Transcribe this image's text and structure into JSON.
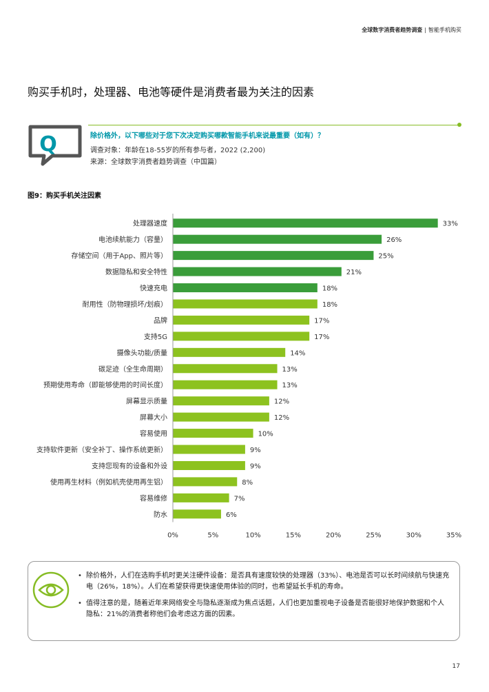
{
  "header": {
    "report": "全球数字消费者趋势调查",
    "separator": "|",
    "section": "智能手机购买"
  },
  "page_title": "购买手机时，处理器、电池等硬件是消费者最为关注的因素",
  "question": {
    "icon_letter": "Q",
    "text": "除价格外，以下哪些对于您下次决定购买哪款智能手机来说最重要（如有）？",
    "respondents": "调查对象：年龄在18-55岁的所有参与者，2022 (2,200)",
    "source": "来源：全球数字消费者趋势调查（中国篇）",
    "accent_color": "#86bc25",
    "text_color": "#0097a9"
  },
  "figure_title": "图9：购买手机关注因素",
  "chart_data": {
    "type": "bar",
    "orientation": "horizontal",
    "categories": [
      "处理器速度",
      "电池续航能力（容量）",
      "存储空间（用于App、照片等）",
      "数据隐私和安全特性",
      "快速充电",
      "耐用性（防物理损坏/划痕）",
      "品牌",
      "支持5G",
      "摄像头功能/质量",
      "碳足迹（全生命周期）",
      "预期使用寿命（即能够使用的时间长度）",
      "屏幕显示质量",
      "屏幕大小",
      "容易使用",
      "支持软件更新（安全补丁、操作系统更新）",
      "支持您现有的设备和外设",
      "使用再生材料（例如机壳使用再生铝）",
      "容易维修",
      "防水"
    ],
    "values": [
      33,
      26,
      25,
      21,
      18,
      18,
      17,
      17,
      14,
      13,
      13,
      12,
      12,
      10,
      9,
      9,
      8,
      7,
      6
    ],
    "value_labels": [
      "33%",
      "26%",
      "25%",
      "21%",
      "18%",
      "18%",
      "17%",
      "17%",
      "14%",
      "13%",
      "13%",
      "12%",
      "12%",
      "10%",
      "9%",
      "9%",
      "8%",
      "7%",
      "6%"
    ],
    "bar_colors": [
      "#3a9d3a",
      "#3a9d3a",
      "#3a9d3a",
      "#3a9d3a",
      "#3a9d3a",
      "#8dc21f",
      "#8dc21f",
      "#8dc21f",
      "#8dc21f",
      "#8dc21f",
      "#8dc21f",
      "#8dc21f",
      "#8dc21f",
      "#8dc21f",
      "#8dc21f",
      "#8dc21f",
      "#8dc21f",
      "#8dc21f",
      "#8dc21f"
    ],
    "xlim": [
      0,
      35
    ],
    "xticks": [
      0,
      5,
      10,
      15,
      20,
      25,
      30,
      35
    ],
    "xtick_labels": [
      "0%",
      "5%",
      "10%",
      "15%",
      "20%",
      "25%",
      "30%",
      "35%"
    ],
    "grid": false
  },
  "insights": [
    "除价格外，人们在选购手机时更关注硬件设备：是否具有速度较快的处理器（33%）、电池是否可以长时间续航与快速充电（26%，18%）。人们在希望获得更快速使用体验的同时，也希望延长手机的寿命。",
    "值得注意的是，随着近年来网络安全与隐私逐渐成为焦点话题，人们也更加重视电子设备是否能很好地保护数据和个人隐私：21%的消费者称他们会考虑这方面的因素。"
  ],
  "page_number": "17"
}
